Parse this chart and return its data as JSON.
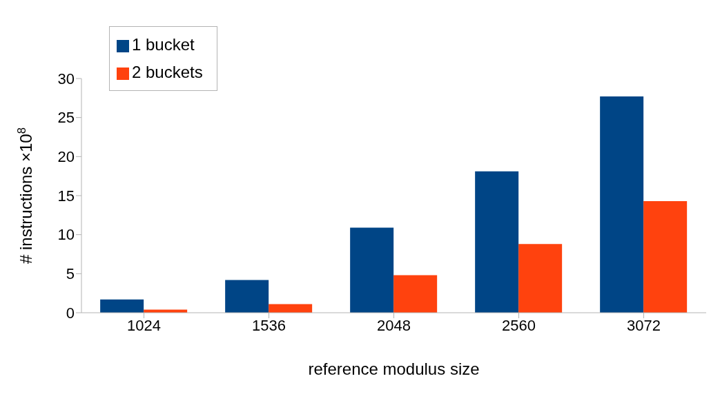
{
  "chart_data": {
    "type": "bar",
    "xlabel": "reference modulus size",
    "ylabel": "# instructions ×10$^{8}$",
    "categories": [
      "1024",
      "1536",
      "2048",
      "2560",
      "3072"
    ],
    "series": [
      {
        "name": "1 bucket",
        "color": "#004586",
        "values": [
          1.7,
          4.2,
          10.9,
          18.1,
          27.7
        ]
      },
      {
        "name": "2 buckets",
        "color": "#ff420e",
        "values": [
          0.4,
          1.1,
          4.8,
          8.8,
          14.3
        ]
      }
    ],
    "ylim": [
      0,
      30
    ],
    "yticks": [
      0,
      5,
      10,
      15,
      20,
      25,
      30
    ],
    "grid": false,
    "legend": "top left"
  }
}
